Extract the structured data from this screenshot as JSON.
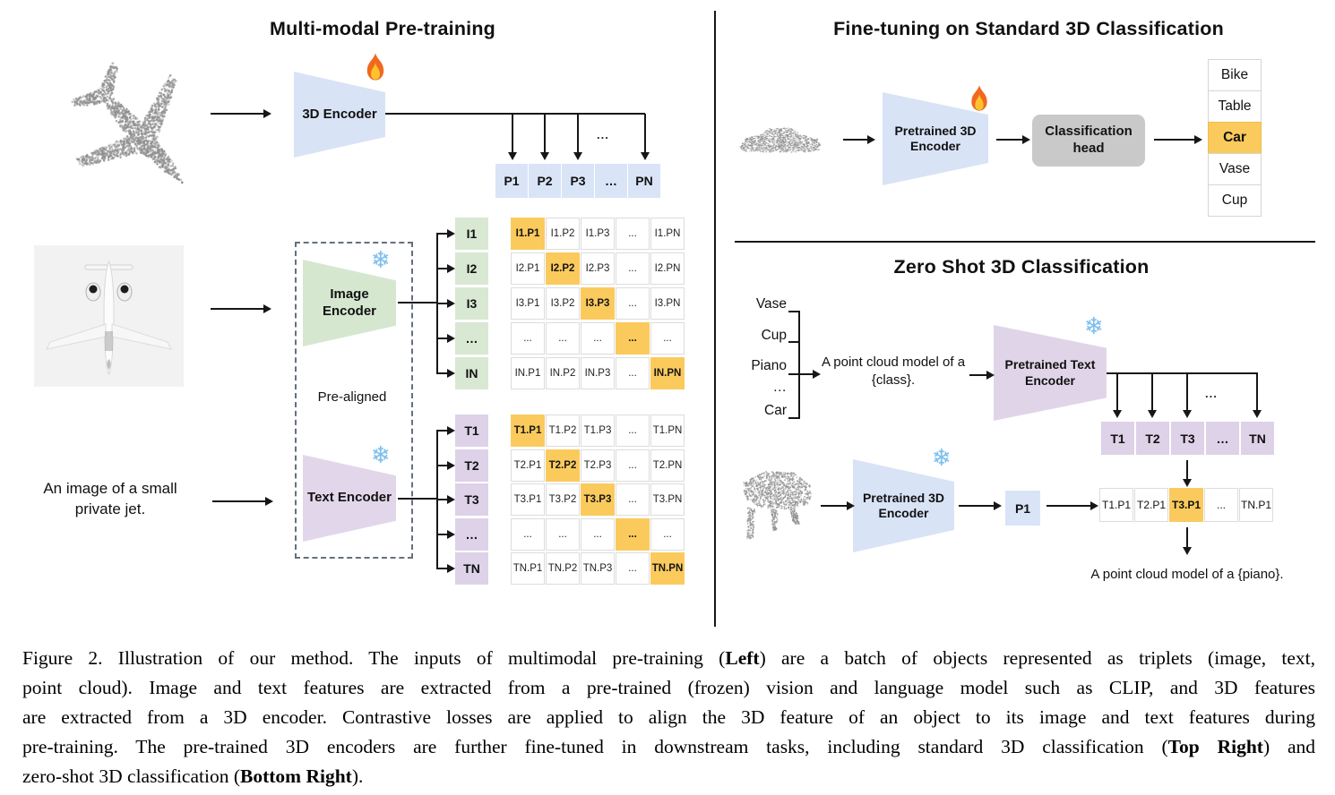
{
  "colors": {
    "highlight": "#FBCA5D",
    "cell_blue": "#D9E4F7",
    "cell_green": "#D9E8D2",
    "cell_purple": "#DDD2E8",
    "trapezoid_blue": "#D9E3F6",
    "trapezoid_green": "#D6E7D0",
    "trapezoid_purple": "#E2D7EA",
    "head_gray": "#C9C9C9"
  },
  "icons": {
    "snowflake_glyph": "❄",
    "flame_icon": "flame",
    "snowflake_icon": "snowflake"
  },
  "left_panel": {
    "title": "Multi-modal Pre-training",
    "encoder_3d_label": "3D Encoder",
    "image_encoder_label": "Image Encoder",
    "text_encoder_label": "Text Encoder",
    "pre_aligned_label": "Pre-aligned",
    "image_caption": "An image of a small private jet.",
    "dots": "...",
    "p_row": [
      "P1",
      "P2",
      "P3",
      "…",
      "PN"
    ],
    "i_labels": [
      "I1",
      "I2",
      "I3",
      "…",
      "IN"
    ],
    "t_labels": [
      "T1",
      "T2",
      "T3",
      "…",
      "TN"
    ],
    "i_matrix": [
      [
        "I1.P1",
        "I1.P2",
        "I1.P3",
        "...",
        "I1.PN"
      ],
      [
        "I2.P1",
        "I2.P2",
        "I2.P3",
        "...",
        "I2.PN"
      ],
      [
        "I3.P1",
        "I3.P2",
        "I3.P3",
        "...",
        "I3.PN"
      ],
      [
        "...",
        "...",
        "...",
        "...",
        "..."
      ],
      [
        "IN.P1",
        "IN.P2",
        "IN.P3",
        "...",
        "IN.PN"
      ]
    ],
    "t_matrix": [
      [
        "T1.P1",
        "T1.P2",
        "T1.P3",
        "...",
        "T1.PN"
      ],
      [
        "T2.P1",
        "T2.P2",
        "T2.P3",
        "...",
        "T2.PN"
      ],
      [
        "T3.P1",
        "T3.P2",
        "T3.P3",
        "...",
        "T3.PN"
      ],
      [
        "...",
        "...",
        "...",
        "...",
        "..."
      ],
      [
        "TN.P1",
        "TN.P2",
        "TN.P3",
        "...",
        "TN.PN"
      ]
    ]
  },
  "top_right_panel": {
    "title": "Fine-tuning on Standard 3D Classification",
    "encoder_label": "Pretrained 3D Encoder",
    "head_label": "Classification head",
    "classes": [
      "Bike",
      "Table",
      "Car",
      "Vase",
      "Cup"
    ],
    "highlighted_class_index": 2
  },
  "bottom_right_panel": {
    "title": "Zero Shot 3D Classification",
    "class_list": [
      "Vase",
      "Cup",
      "Piano",
      "…",
      "Car"
    ],
    "prompt": "A point cloud model of a {class}.",
    "text_encoder_label": "Pretrained Text Encoder",
    "encoder_3d_label": "Pretrained 3D Encoder",
    "p1_label": "P1",
    "t_row": [
      "T1",
      "T2",
      "T3",
      "…",
      "TN"
    ],
    "tp_row": [
      "T1.P1",
      "T2.P1",
      "T3.P1",
      "...",
      "TN.P1"
    ],
    "tp_highlight_index": 2,
    "dots": "...",
    "result_prompt": "A point cloud model of a {piano}."
  },
  "caption": {
    "lines": [
      [
        {
          "t": "Figure 2. Illustration of our method. The inputs of multimodal pre-training (",
          "b": false
        },
        {
          "t": "Left",
          "b": true
        },
        {
          "t": ") are a batch of objects represented as triplets (image, text,",
          "b": false
        }
      ],
      [
        {
          "t": "point cloud). Image and text features are extracted from a pre-trained (frozen) vision and language model such as CLIP, and 3D features",
          "b": false
        }
      ],
      [
        {
          "t": "are extracted from a 3D encoder. Contrastive losses are applied to align the 3D feature of an object to its image and text features during",
          "b": false
        }
      ],
      [
        {
          "t": "pre-training. The pre-trained 3D encoders are further fine-tuned in downstream tasks, including standard 3D classification (",
          "b": false
        },
        {
          "t": "Top Right",
          "b": true
        },
        {
          "t": ") and",
          "b": false
        }
      ],
      [
        {
          "t": "zero-shot 3D classification (",
          "b": false
        },
        {
          "t": "Bottom Right",
          "b": true
        },
        {
          "t": ").",
          "b": false
        }
      ]
    ]
  }
}
